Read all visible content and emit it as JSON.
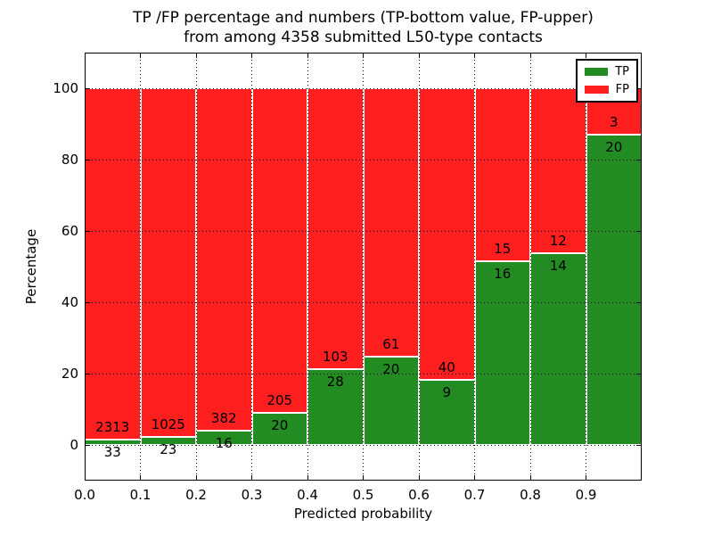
{
  "title": {
    "line1": "TP /FP percentage and numbers (TP-bottom value, FP-upper)",
    "line2": "from among 4358 submitted L50-type contacts"
  },
  "chart_data": {
    "type": "bar",
    "stacked": true,
    "title": "TP /FP percentage and numbers (TP-bottom value, FP-upper) from among 4358 submitted L50-type contacts",
    "xlabel": "Predicted probability",
    "ylabel": "Percentage",
    "total_contacts": 4358,
    "xlim": [
      0.0,
      1.0
    ],
    "ylim": [
      -10,
      110
    ],
    "x_tick_values": [
      0.0,
      0.1,
      0.2,
      0.3,
      0.4,
      0.5,
      0.6,
      0.7,
      0.8,
      0.9
    ],
    "x_tick_labels": [
      "0.0",
      "0.1",
      "0.2",
      "0.3",
      "0.4",
      "0.5",
      "0.6",
      "0.7",
      "0.8",
      "0.9"
    ],
    "y_ticks": [
      0,
      20,
      40,
      60,
      80,
      100
    ],
    "grid": "dotted",
    "legend": {
      "position": "upper right",
      "entries": [
        {
          "name": "TP",
          "color": "#228b22"
        },
        {
          "name": "FP",
          "color": "#ff1f1f"
        }
      ]
    },
    "bins": [
      {
        "x_start": 0.0,
        "x_end": 0.1,
        "tp": 33,
        "fp": 2313,
        "tp_pct": 1.41
      },
      {
        "x_start": 0.1,
        "x_end": 0.2,
        "tp": 23,
        "fp": 1025,
        "tp_pct": 2.19
      },
      {
        "x_start": 0.2,
        "x_end": 0.3,
        "tp": 16,
        "fp": 382,
        "tp_pct": 4.02
      },
      {
        "x_start": 0.3,
        "x_end": 0.4,
        "tp": 20,
        "fp": 205,
        "tp_pct": 8.89
      },
      {
        "x_start": 0.4,
        "x_end": 0.5,
        "tp": 28,
        "fp": 103,
        "tp_pct": 21.37
      },
      {
        "x_start": 0.5,
        "x_end": 0.6,
        "tp": 20,
        "fp": 61,
        "tp_pct": 24.69
      },
      {
        "x_start": 0.6,
        "x_end": 0.7,
        "tp": 9,
        "fp": 40,
        "tp_pct": 18.37
      },
      {
        "x_start": 0.7,
        "x_end": 0.8,
        "tp": 16,
        "fp": 15,
        "tp_pct": 51.61
      },
      {
        "x_start": 0.8,
        "x_end": 0.9,
        "tp": 14,
        "fp": 12,
        "tp_pct": 53.85
      },
      {
        "x_start": 0.9,
        "x_end": 1.0,
        "tp": 20,
        "fp": 3,
        "tp_pct": 86.96
      }
    ]
  }
}
